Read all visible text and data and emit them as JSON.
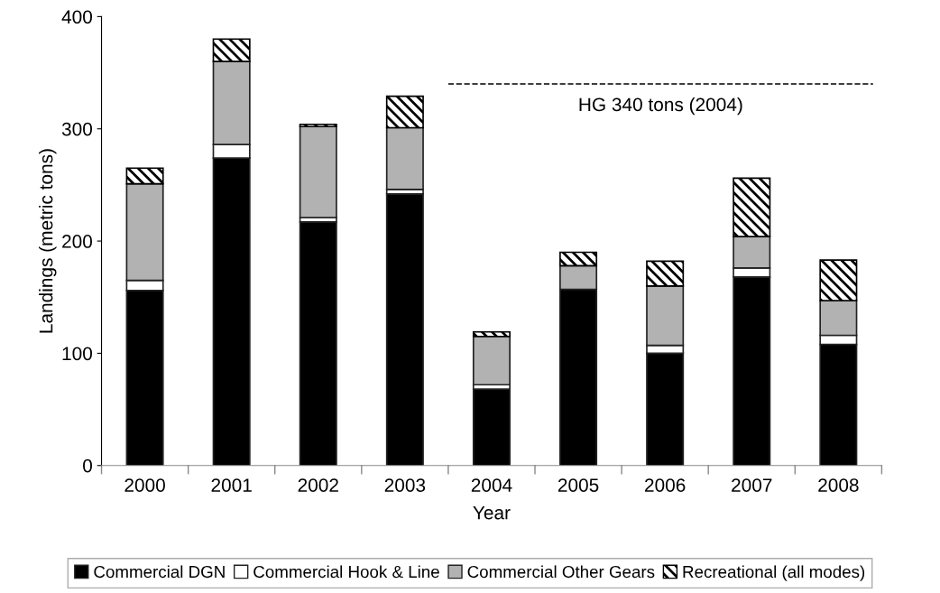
{
  "chart_data": {
    "type": "bar",
    "stacked": true,
    "xlabel": "Year",
    "ylabel": "Landings (metric tons)",
    "categories": [
      "2000",
      "2001",
      "2002",
      "2003",
      "2004",
      "2005",
      "2006",
      "2007",
      "2008"
    ],
    "series": [
      {
        "name": "Commercial DGN",
        "color": "#000000",
        "values": [
          156,
          274,
          217,
          242,
          68,
          157,
          100,
          168,
          108
        ]
      },
      {
        "name": "Commercial Hook & Line",
        "color": "#ffffff",
        "values": [
          9,
          12,
          4,
          4,
          4,
          0,
          7,
          8,
          8
        ]
      },
      {
        "name": "Commercial Other Gears",
        "color": "#b2b2b2",
        "values": [
          86,
          74,
          81,
          55,
          43,
          21,
          53,
          28,
          31
        ]
      },
      {
        "name": "Recreational (all modes)",
        "color": "#000000",
        "values": [
          14,
          20,
          2,
          28,
          4,
          12,
          22,
          52,
          36
        ]
      }
    ],
    "ylim": [
      0,
      400
    ],
    "yticks": [
      0,
      100,
      200,
      300,
      400
    ],
    "grid": false,
    "legend": "bottom",
    "ref_lines": [
      {
        "axis": "y",
        "value": 340,
        "label": "HG 340 tons (2004)",
        "line_style": "dashed",
        "color": "#000000"
      }
    ]
  }
}
